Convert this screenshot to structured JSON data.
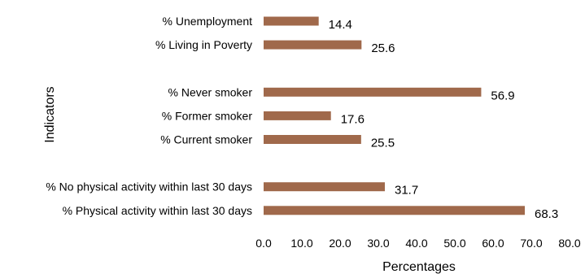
{
  "chart_data": {
    "type": "bar",
    "orientation": "horizontal",
    "title": "",
    "xlabel": "Percentages",
    "ylabel": "Indicators",
    "xlim": [
      0,
      80
    ],
    "x_ticks": [
      "0.0",
      "10.0",
      "20.0",
      "30.0",
      "40.0",
      "50.0",
      "60.0",
      "70.0",
      "80.0"
    ],
    "grid": false,
    "legend": "none",
    "bar_color": "#a0694b",
    "categories": [
      "% Unemployment",
      "% Living in Poverty",
      "",
      "% Never smoker",
      "% Former smoker",
      "% Current smoker",
      "",
      "% No physical activity within last 30 days",
      "% Physical activity within last 30 days"
    ],
    "values": [
      14.4,
      25.6,
      null,
      56.9,
      17.6,
      25.5,
      null,
      31.7,
      68.3
    ],
    "value_labels": [
      "14.4",
      "25.6",
      "",
      "56.9",
      "17.6",
      "25.5",
      "",
      "31.7",
      "68.3"
    ]
  }
}
